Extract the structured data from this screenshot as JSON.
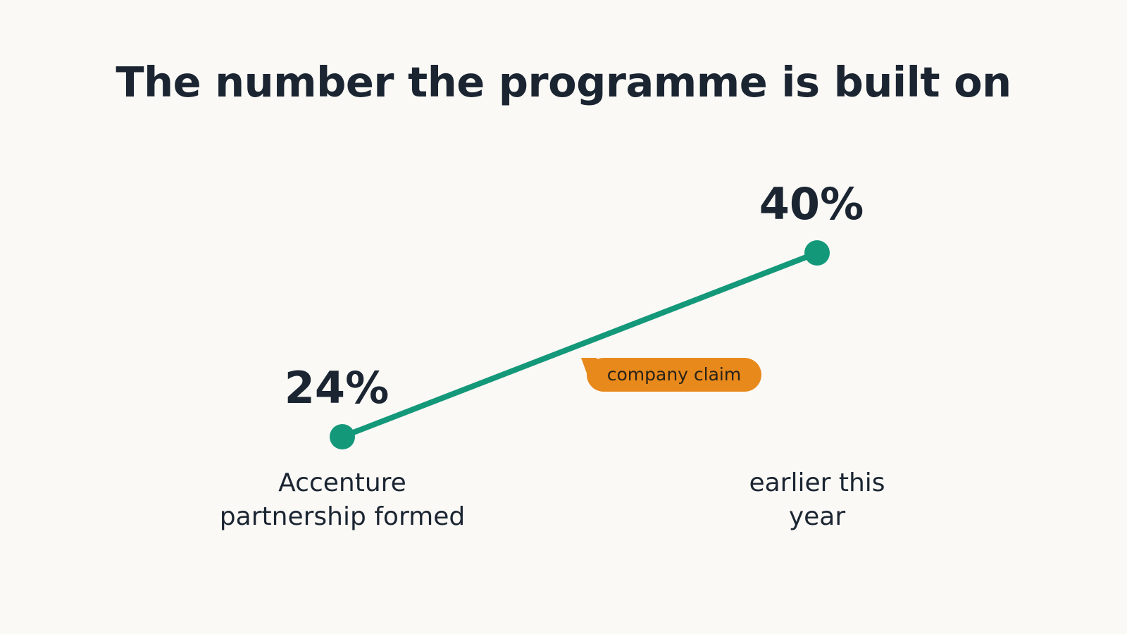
{
  "chart_data": {
    "type": "line",
    "title": "The number the programme is built on",
    "categories": [
      "Accenture partnership formed",
      "earlier this year"
    ],
    "values": [
      24,
      40
    ],
    "value_labels": [
      "24%",
      "40%"
    ],
    "annotation": "company claim",
    "colors": {
      "line": "#14987a",
      "annotation_bg": "#e8891c",
      "text": "#1b2532",
      "background": "#faf9f5"
    }
  }
}
